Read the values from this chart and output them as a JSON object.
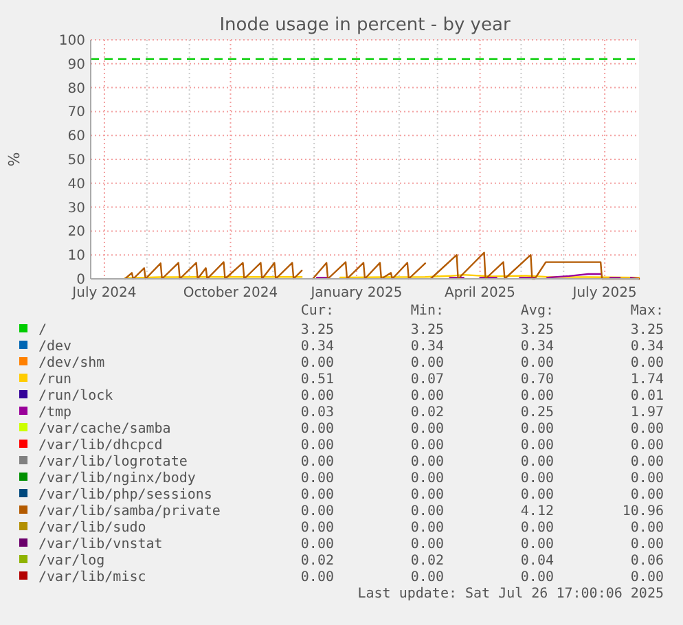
{
  "chart_data": {
    "type": "line",
    "title": "Inode usage in percent - by year",
    "ylabel": "%",
    "xlim": [
      "2024-06-21",
      "2025-07-26"
    ],
    "xticks": [
      {
        "value": "2024-07-01",
        "label": "July 2024"
      },
      {
        "value": "2024-08-01",
        "label": null
      },
      {
        "value": "2024-09-01",
        "label": null
      },
      {
        "value": "2024-10-01",
        "label": "October 2024"
      },
      {
        "value": "2024-11-01",
        "label": null
      },
      {
        "value": "2024-12-01",
        "label": null
      },
      {
        "value": "2025-01-01",
        "label": "January 2025"
      },
      {
        "value": "2025-02-01",
        "label": null
      },
      {
        "value": "2025-03-01",
        "label": null
      },
      {
        "value": "2025-04-01",
        "label": "April 2025"
      },
      {
        "value": "2025-05-01",
        "label": null
      },
      {
        "value": "2025-06-01",
        "label": null
      },
      {
        "value": "2025-07-01",
        "label": "July 2025"
      }
    ],
    "ylim": [
      0,
      100
    ],
    "yticks": [
      0,
      10,
      20,
      30,
      40,
      50,
      60,
      70,
      80,
      90,
      100
    ],
    "grid": true,
    "legend": "bottom",
    "line_style": "solid",
    "marker": "none",
    "ref_lines": [
      {
        "axis": "y",
        "value": 92,
        "color": "#00cc00",
        "line_style": "dashed"
      }
    ],
    "series": [
      {
        "name": "/",
        "color": "#00cc00"
      },
      {
        "name": "/dev",
        "color": "#0066b3"
      },
      {
        "name": "/dev/shm",
        "color": "#ff8000"
      },
      {
        "name": "/run",
        "color": "#ffcc00",
        "x": [
          "2024-07-16",
          "2024-08-10",
          "2024-09-10",
          "2024-10-10",
          "2024-11-10",
          "2024-11-22",
          "2024-11-30",
          "2024-12-20",
          "2025-01-20",
          "2025-02-20",
          "2025-03-10",
          "2025-03-20",
          "2025-04-10",
          "2025-05-05",
          "2025-05-20",
          "2025-06-20",
          "2025-07-26"
        ],
        "values": [
          0.3,
          0.7,
          0.8,
          0.8,
          0.8,
          0.8,
          null,
          0.6,
          0.7,
          0.8,
          1.2,
          1.7,
          1.0,
          1.3,
          0.8,
          0.7,
          0.5
        ]
      },
      {
        "name": "/run/lock",
        "color": "#330099"
      },
      {
        "name": "/tmp",
        "color": "#990099",
        "x": [
          "2024-12-03",
          "2024-12-12",
          "2024-12-13",
          "2025-03-10",
          "2025-03-20",
          "2025-03-21",
          "2025-04-01",
          "2025-04-13",
          "2025-04-14",
          "2025-04-30",
          "2025-05-11",
          "2025-05-12",
          "2025-05-20",
          "2025-06-05",
          "2025-06-19",
          "2025-06-28",
          "2025-06-29",
          "2025-07-05",
          "2025-07-12",
          "2025-07-13",
          "2025-07-20",
          "2025-07-26"
        ],
        "values": [
          0.5,
          0.5,
          null,
          0.5,
          0.5,
          null,
          0.5,
          0.5,
          null,
          0.5,
          0.5,
          null,
          0.5,
          1.2,
          2.0,
          2.0,
          null,
          0.5,
          0.5,
          null,
          0.5,
          0
        ]
      },
      {
        "name": "/var/cache/samba",
        "color": "#ccff00"
      },
      {
        "name": "/var/lib/dhcpcd",
        "color": "#ff0000"
      },
      {
        "name": "/var/lib/logrotate",
        "color": "#808080"
      },
      {
        "name": "/var/lib/nginx/body",
        "color": "#008f00"
      },
      {
        "name": "/var/lib/php/sessions",
        "color": "#00487d"
      },
      {
        "name": "/var/lib/samba/private",
        "color": "#b35a00",
        "x": [
          "2024-07-16",
          "2024-07-21",
          "2024-07-22",
          "2024-07-30",
          "2024-07-31",
          "2024-08-11",
          "2024-08-12",
          "2024-08-24",
          "2024-08-25",
          "2024-09-06",
          "2024-09-07",
          "2024-09-13",
          "2024-09-14",
          "2024-09-26",
          "2024-09-27",
          "2024-10-10",
          "2024-10-11",
          "2024-10-23",
          "2024-10-24",
          "2024-11-02",
          "2024-11-03",
          "2024-11-15",
          "2024-11-16",
          "2024-11-22",
          "2024-11-23",
          "2024-11-30",
          "2024-12-10",
          "2024-12-11",
          "2024-12-24",
          "2024-12-25",
          "2025-01-06",
          "2025-01-07",
          "2025-01-18",
          "2025-01-19",
          "2025-01-26",
          "2025-01-27",
          "2025-02-07",
          "2025-02-08",
          "2025-02-20",
          "2025-02-21",
          "2025-02-24",
          "2025-03-15",
          "2025-03-16",
          "2025-04-04",
          "2025-04-05",
          "2025-04-18",
          "2025-04-19",
          "2025-05-08",
          "2025-05-09",
          "2025-05-11",
          "2025-05-19",
          "2025-06-28",
          "2025-06-29",
          "2025-07-26"
        ],
        "values": [
          0,
          2.5,
          0,
          4.5,
          0,
          6.5,
          0,
          6.7,
          0,
          6.7,
          0,
          4.5,
          0,
          7,
          0,
          6.7,
          0,
          6.7,
          0,
          6.7,
          0,
          6.7,
          0,
          3.5,
          null,
          0,
          6.7,
          0,
          7,
          0,
          6.7,
          0,
          6.7,
          0,
          2.5,
          0,
          6.7,
          0,
          6.5,
          null,
          0,
          10,
          0,
          11,
          0,
          7,
          0,
          10,
          0,
          0,
          7,
          7,
          0,
          0
        ]
      },
      {
        "name": "/var/lib/sudo",
        "color": "#b38f00"
      },
      {
        "name": "/var/lib/vnstat",
        "color": "#6b006b"
      },
      {
        "name": "/var/log",
        "color": "#8fb300"
      },
      {
        "name": "/var/lib/misc",
        "color": "#b30000"
      }
    ],
    "annotations": [
      "Cur:",
      "Min:",
      "Avg:",
      "Max:",
      "3.25",
      "3.25",
      "3.25",
      "3.25",
      "0.34",
      "0.34",
      "0.34",
      "0.34",
      "0.00",
      "0.00",
      "0.00",
      "0.00",
      "0.51",
      "0.07",
      "0.70",
      "1.74",
      "0.00",
      "0.00",
      "0.00",
      "0.01",
      "0.03",
      "0.02",
      "0.25",
      "1.97",
      "0.00",
      "0.00",
      "0.00",
      "0.00",
      "0.00",
      "0.00",
      "0.00",
      "0.00",
      "0.00",
      "0.00",
      "0.00",
      "0.00",
      "0.00",
      "0.00",
      "0.00",
      "0.00",
      "0.00",
      "0.00",
      "0.00",
      "0.00",
      "0.00",
      "0.00",
      "4.12",
      "10.96",
      "0.00",
      "0.00",
      "0.00",
      "0.00",
      "0.00",
      "0.00",
      "0.00",
      "0.00",
      "0.02",
      "0.02",
      "0.04",
      "0.06",
      "0.00",
      "0.00",
      "0.00",
      "0.00",
      "Last update: Sat Jul 26 17:00:06 2025"
    ]
  }
}
